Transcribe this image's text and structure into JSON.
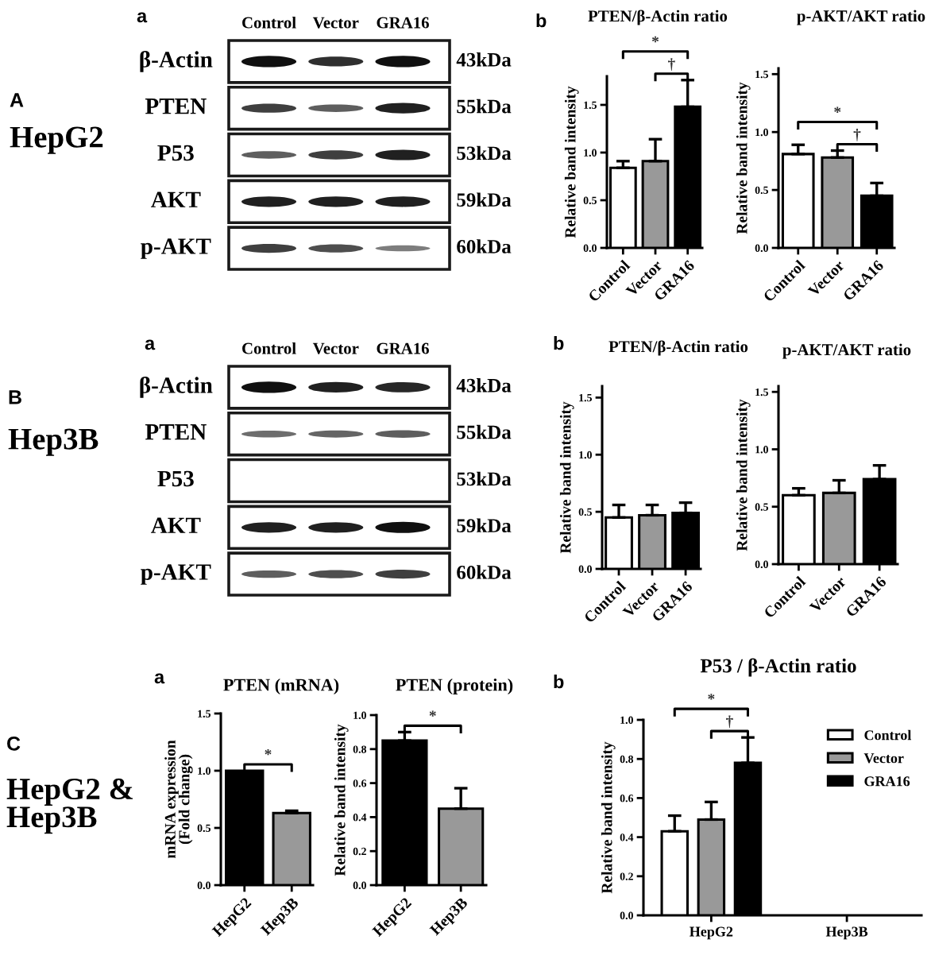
{
  "chart_data": [
    {
      "type": "other",
      "annotations": [
        "A",
        "HepG2",
        "a"
      ],
      "categories": [
        "Control",
        "Vector",
        "GRA16"
      ],
      "y_categories": [
        "β-Actin",
        "PTEN",
        "P53",
        "AKT",
        "p-AKT"
      ],
      "y2_categories": [
        "43kDa",
        "55kDa",
        "53kDa",
        "59kDa",
        "60kDa"
      ]
    },
    {
      "type": "bar",
      "title": "PTEN/β-Actin ratio",
      "ylabel": "Relative band intensity",
      "categories": [
        "Control",
        "Vector",
        "GRA16"
      ],
      "values": [
        0.84,
        0.91,
        1.48
      ],
      "colors": [
        "#ffffff",
        "#999999",
        "#000000"
      ],
      "errors": [
        [
          0.84,
          0.91
        ],
        [
          0.91,
          1.14
        ],
        [
          1.48,
          1.76
        ]
      ],
      "ylim": [
        0,
        1.8
      ],
      "yticks": [
        {
          "value": 0,
          "label": "0.0"
        },
        {
          "value": 0.5,
          "label": "0.5"
        },
        {
          "value": 1,
          "label": "1.0"
        },
        {
          "value": 1.5,
          "label": "1.5"
        }
      ],
      "annotations": [
        "b",
        "*",
        "†"
      ]
    },
    {
      "type": "bar",
      "title": "p-AKT/AKT ratio",
      "ylabel": "Relative band intensity",
      "categories": [
        "Control",
        "Vector",
        "GRA16"
      ],
      "values": [
        0.81,
        0.78,
        0.45
      ],
      "colors": [
        "#ffffff",
        "#999999",
        "#000000"
      ],
      "errors": [
        [
          0.81,
          0.89
        ],
        [
          0.78,
          0.84
        ],
        [
          0.45,
          0.56
        ]
      ],
      "ylim": [
        0,
        1.55
      ],
      "yticks": [
        {
          "value": 0,
          "label": "0.0"
        },
        {
          "value": 0.5,
          "label": "0.5"
        },
        {
          "value": 1,
          "label": "1.0"
        },
        {
          "value": 1.5,
          "label": "1.5"
        }
      ],
      "annotations": [
        "*",
        "†"
      ]
    },
    {
      "type": "other",
      "annotations": [
        "B",
        "Hep3B",
        "a"
      ],
      "categories": [
        "Control",
        "Vector",
        "GRA16"
      ],
      "y_categories": [
        "β-Actin",
        "PTEN",
        "P53",
        "AKT",
        "p-AKT"
      ],
      "y2_categories": [
        "43kDa",
        "55kDa",
        "53kDa",
        "59kDa",
        "60kDa"
      ]
    },
    {
      "type": "bar",
      "title": "PTEN/β-Actin ratio",
      "ylabel": "Relative band intensity",
      "categories": [
        "Control",
        "Vector",
        "GRA16"
      ],
      "values": [
        0.45,
        0.47,
        0.49
      ],
      "colors": [
        "#ffffff",
        "#999999",
        "#000000"
      ],
      "errors": [
        [
          0.45,
          0.56
        ],
        [
          0.47,
          0.56
        ],
        [
          0.49,
          0.58
        ]
      ],
      "ylim": [
        0,
        1.6
      ],
      "yticks": [
        {
          "value": 0,
          "label": "0.0"
        },
        {
          "value": 0.5,
          "label": "0.5"
        },
        {
          "value": 1,
          "label": "1.0"
        },
        {
          "value": 1.5,
          "label": "1.5"
        }
      ],
      "annotations": [
        "b"
      ]
    },
    {
      "type": "bar",
      "title": "p-AKT/AKT ratio",
      "ylabel": "Relative band intensity",
      "categories": [
        "Control",
        "Vector",
        "GRA16"
      ],
      "values": [
        0.6,
        0.62,
        0.74
      ],
      "colors": [
        "#ffffff",
        "#999999",
        "#000000"
      ],
      "errors": [
        [
          0.6,
          0.66
        ],
        [
          0.62,
          0.73
        ],
        [
          0.74,
          0.86
        ]
      ],
      "ylim": [
        0,
        1.55
      ],
      "yticks": [
        {
          "value": 0,
          "label": "0.0"
        },
        {
          "value": 0.5,
          "label": "0.5"
        },
        {
          "value": 1,
          "label": "1.0"
        },
        {
          "value": 1.5,
          "label": "1.5"
        }
      ]
    },
    {
      "type": "bar",
      "title": "PTEN (mRNA)",
      "ylabel": "mRNA expression\n(Fold change)",
      "categories": [
        "HepG2",
        "Hep3B"
      ],
      "values": [
        1.0,
        0.63
      ],
      "colors": [
        "#000000",
        "#999999"
      ],
      "errors": [
        null,
        [
          0.63,
          0.65
        ]
      ],
      "ylim": [
        0,
        1.5
      ],
      "yticks": [
        {
          "value": 0,
          "label": "0.0"
        },
        {
          "value": 0.5,
          "label": "0.5"
        },
        {
          "value": 1,
          "label": "1.0"
        },
        {
          "value": 1.5,
          "label": "1.5"
        }
      ],
      "annotations": [
        "C",
        "HepG2 &\nHep3B",
        "a",
        "*"
      ]
    },
    {
      "type": "bar",
      "title": "PTEN (protein)",
      "ylabel": "Relative band intensity",
      "categories": [
        "HepG2",
        "Hep3B"
      ],
      "values": [
        0.85,
        0.45
      ],
      "colors": [
        "#000000",
        "#999999"
      ],
      "errors": [
        [
          0.85,
          0.9
        ],
        [
          0.45,
          0.57
        ]
      ],
      "ylim": [
        0,
        1.0
      ],
      "yticks": [
        {
          "value": 0,
          "label": "0.0"
        },
        {
          "value": 0.2,
          "label": "0.2"
        },
        {
          "value": 0.4,
          "label": "0.4"
        },
        {
          "value": 0.6,
          "label": "0.6"
        },
        {
          "value": 0.8,
          "label": "0.8"
        },
        {
          "value": 1,
          "label": "1.0"
        }
      ],
      "annotations": [
        "*"
      ]
    },
    {
      "type": "bar",
      "title": "P53 / β-Actin ratio",
      "ylabel": "Relative band intensity",
      "categories": [
        "HepG2",
        "Hep3B"
      ],
      "series": [
        {
          "name": "Control",
          "color": "#ffffff",
          "values": [
            0.43,
            null
          ],
          "errors": [
            [
              0.43,
              0.51
            ],
            null
          ]
        },
        {
          "name": "Vector",
          "color": "#999999",
          "values": [
            0.49,
            null
          ],
          "errors": [
            [
              0.49,
              0.58
            ],
            null
          ]
        },
        {
          "name": "GRA16",
          "color": "#000000",
          "values": [
            0.78,
            null
          ],
          "errors": [
            [
              0.78,
              0.91
            ],
            null
          ]
        }
      ],
      "ylim": [
        0,
        1.0
      ],
      "yticks": [
        {
          "value": 0,
          "label": "0.0"
        },
        {
          "value": 0.2,
          "label": "0.2"
        },
        {
          "value": 0.4,
          "label": "0.4"
        },
        {
          "value": 0.6,
          "label": "0.6"
        },
        {
          "value": 0.8,
          "label": "0.8"
        },
        {
          "value": 1,
          "label": "1.0"
        }
      ],
      "legend": "top right",
      "annotations": [
        "b",
        "*",
        "†"
      ]
    }
  ]
}
